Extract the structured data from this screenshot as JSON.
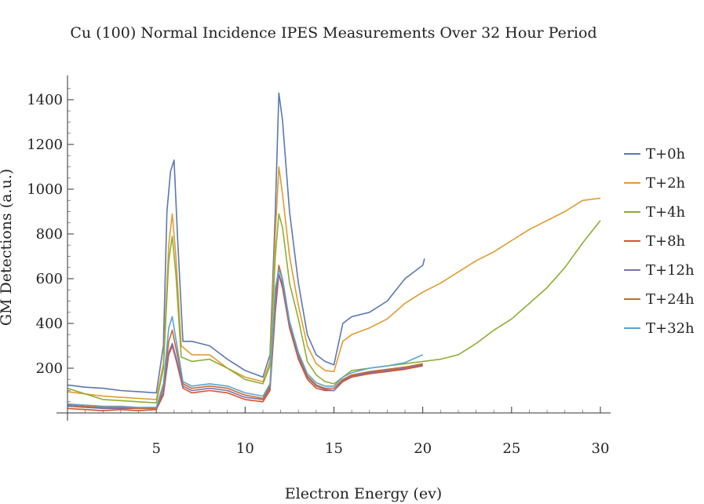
{
  "chart_data": {
    "type": "line",
    "title": "Cu (100) Normal Incidence IPES Measurements Over 32 Hour Period",
    "xlabel": "Electron Energy (ev)",
    "ylabel": "GM Detections (a.u.)",
    "xlim": [
      0,
      31
    ],
    "ylim": [
      -50,
      1500
    ],
    "xticks": [
      5,
      10,
      15,
      20,
      25,
      30
    ],
    "yticks": [
      200,
      400,
      600,
      800,
      1000,
      1200,
      1400
    ],
    "grid": false,
    "legend_position": "right",
    "series": [
      {
        "name": "T+0h",
        "color": "#5a78b1",
        "points": [
          [
            0,
            125
          ],
          [
            1,
            115
          ],
          [
            2,
            110
          ],
          [
            3,
            100
          ],
          [
            4,
            95
          ],
          [
            5,
            90
          ],
          [
            5.4,
            300
          ],
          [
            5.6,
            900
          ],
          [
            5.8,
            1080
          ],
          [
            6,
            1130
          ],
          [
            6.2,
            780
          ],
          [
            6.5,
            320
          ],
          [
            7,
            320
          ],
          [
            8,
            300
          ],
          [
            9,
            240
          ],
          [
            10,
            190
          ],
          [
            11,
            160
          ],
          [
            11.4,
            260
          ],
          [
            11.7,
            900
          ],
          [
            11.9,
            1430
          ],
          [
            12.1,
            1310
          ],
          [
            12.5,
            900
          ],
          [
            13,
            580
          ],
          [
            13.5,
            350
          ],
          [
            14,
            260
          ],
          [
            14.5,
            230
          ],
          [
            15,
            215
          ],
          [
            15.5,
            400
          ],
          [
            16,
            430
          ],
          [
            17,
            450
          ],
          [
            18,
            500
          ],
          [
            19,
            600
          ],
          [
            20,
            660
          ],
          [
            20.1,
            690
          ]
        ]
      },
      {
        "name": "T+2h",
        "color": "#e29b2e",
        "points": [
          [
            0,
            95
          ],
          [
            1,
            85
          ],
          [
            2,
            75
          ],
          [
            3,
            70
          ],
          [
            4,
            65
          ],
          [
            5,
            60
          ],
          [
            5.4,
            220
          ],
          [
            5.7,
            750
          ],
          [
            5.9,
            890
          ],
          [
            6.1,
            700
          ],
          [
            6.4,
            300
          ],
          [
            7,
            260
          ],
          [
            8,
            260
          ],
          [
            9,
            200
          ],
          [
            10,
            160
          ],
          [
            11,
            140
          ],
          [
            11.4,
            230
          ],
          [
            11.7,
            800
          ],
          [
            11.9,
            1100
          ],
          [
            12.1,
            980
          ],
          [
            12.5,
            700
          ],
          [
            13,
            480
          ],
          [
            13.5,
            300
          ],
          [
            14,
            220
          ],
          [
            14.5,
            190
          ],
          [
            15,
            185
          ],
          [
            15.5,
            320
          ],
          [
            16,
            350
          ],
          [
            17,
            380
          ],
          [
            18,
            420
          ],
          [
            19,
            490
          ],
          [
            20,
            540
          ],
          [
            21,
            580
          ],
          [
            22,
            630
          ],
          [
            23,
            680
          ],
          [
            24,
            720
          ],
          [
            25,
            770
          ],
          [
            26,
            820
          ],
          [
            27,
            860
          ],
          [
            28,
            900
          ],
          [
            29,
            950
          ],
          [
            30,
            960
          ]
        ]
      },
      {
        "name": "T+4h",
        "color": "#8fad34",
        "points": [
          [
            0,
            110
          ],
          [
            1,
            85
          ],
          [
            2,
            60
          ],
          [
            3,
            55
          ],
          [
            4,
            50
          ],
          [
            5,
            45
          ],
          [
            5.4,
            200
          ],
          [
            5.7,
            680
          ],
          [
            5.9,
            790
          ],
          [
            6.1,
            620
          ],
          [
            6.4,
            250
          ],
          [
            7,
            230
          ],
          [
            8,
            240
          ],
          [
            9,
            200
          ],
          [
            10,
            150
          ],
          [
            11,
            130
          ],
          [
            11.4,
            210
          ],
          [
            11.7,
            700
          ],
          [
            11.9,
            890
          ],
          [
            12.1,
            830
          ],
          [
            12.5,
            580
          ],
          [
            13,
            420
          ],
          [
            13.5,
            230
          ],
          [
            14,
            170
          ],
          [
            14.5,
            140
          ],
          [
            15,
            130
          ],
          [
            15.5,
            160
          ],
          [
            16,
            190
          ],
          [
            17,
            200
          ],
          [
            18,
            210
          ],
          [
            19,
            220
          ],
          [
            20,
            230
          ],
          [
            21,
            240
          ],
          [
            22,
            260
          ],
          [
            23,
            310
          ],
          [
            24,
            370
          ],
          [
            25,
            420
          ],
          [
            26,
            490
          ],
          [
            27,
            560
          ],
          [
            28,
            650
          ],
          [
            29,
            760
          ],
          [
            30,
            860
          ]
        ]
      },
      {
        "name": "T+8h",
        "color": "#d9542e",
        "points": [
          [
            0,
            20
          ],
          [
            1,
            15
          ],
          [
            2,
            10
          ],
          [
            3,
            15
          ],
          [
            4,
            10
          ],
          [
            5,
            15
          ],
          [
            5.4,
            80
          ],
          [
            5.7,
            260
          ],
          [
            5.9,
            300
          ],
          [
            6.1,
            240
          ],
          [
            6.5,
            110
          ],
          [
            7,
            90
          ],
          [
            8,
            100
          ],
          [
            9,
            90
          ],
          [
            10,
            60
          ],
          [
            11,
            50
          ],
          [
            11.4,
            100
          ],
          [
            11.7,
            450
          ],
          [
            11.9,
            620
          ],
          [
            12.1,
            560
          ],
          [
            12.5,
            380
          ],
          [
            13,
            240
          ],
          [
            13.5,
            150
          ],
          [
            14,
            110
          ],
          [
            14.5,
            100
          ],
          [
            15,
            100
          ],
          [
            15.5,
            140
          ],
          [
            16,
            160
          ],
          [
            17,
            175
          ],
          [
            18,
            185
          ],
          [
            19,
            195
          ],
          [
            20,
            210
          ]
        ]
      },
      {
        "name": "T+12h",
        "color": "#7c6fb0",
        "points": [
          [
            0,
            30
          ],
          [
            1,
            25
          ],
          [
            2,
            20
          ],
          [
            3,
            20
          ],
          [
            4,
            20
          ],
          [
            5,
            20
          ],
          [
            5.4,
            90
          ],
          [
            5.7,
            270
          ],
          [
            5.9,
            310
          ],
          [
            6.1,
            250
          ],
          [
            6.5,
            120
          ],
          [
            7,
            100
          ],
          [
            8,
            110
          ],
          [
            9,
            100
          ],
          [
            10,
            70
          ],
          [
            11,
            60
          ],
          [
            11.4,
            110
          ],
          [
            11.7,
            480
          ],
          [
            11.9,
            620
          ],
          [
            12.1,
            580
          ],
          [
            12.5,
            390
          ],
          [
            13,
            250
          ],
          [
            13.5,
            160
          ],
          [
            14,
            120
          ],
          [
            14.5,
            105
          ],
          [
            15,
            100
          ],
          [
            15.5,
            145
          ],
          [
            16,
            165
          ],
          [
            17,
            180
          ],
          [
            18,
            190
          ],
          [
            19,
            200
          ],
          [
            20,
            215
          ]
        ]
      },
      {
        "name": "T+24h",
        "color": "#c86b2a",
        "points": [
          [
            0,
            35
          ],
          [
            1,
            30
          ],
          [
            2,
            25
          ],
          [
            3,
            25
          ],
          [
            4,
            20
          ],
          [
            5,
            20
          ],
          [
            5.4,
            110
          ],
          [
            5.7,
            320
          ],
          [
            5.9,
            370
          ],
          [
            6.1,
            290
          ],
          [
            6.5,
            130
          ],
          [
            7,
            110
          ],
          [
            8,
            120
          ],
          [
            9,
            110
          ],
          [
            10,
            80
          ],
          [
            11,
            65
          ],
          [
            11.4,
            120
          ],
          [
            11.7,
            520
          ],
          [
            11.9,
            660
          ],
          [
            12.1,
            600
          ],
          [
            12.5,
            400
          ],
          [
            13,
            260
          ],
          [
            13.5,
            165
          ],
          [
            14,
            125
          ],
          [
            14.5,
            110
          ],
          [
            15,
            110
          ],
          [
            15.5,
            150
          ],
          [
            16,
            170
          ],
          [
            17,
            185
          ],
          [
            18,
            195
          ],
          [
            19,
            205
          ],
          [
            20,
            220
          ]
        ]
      },
      {
        "name": "T+32h",
        "color": "#5ba3d0",
        "points": [
          [
            0,
            40
          ],
          [
            1,
            35
          ],
          [
            2,
            30
          ],
          [
            3,
            30
          ],
          [
            4,
            25
          ],
          [
            5,
            25
          ],
          [
            5.4,
            130
          ],
          [
            5.7,
            380
          ],
          [
            5.9,
            430
          ],
          [
            6.1,
            330
          ],
          [
            6.5,
            140
          ],
          [
            7,
            120
          ],
          [
            8,
            130
          ],
          [
            9,
            120
          ],
          [
            10,
            90
          ],
          [
            11,
            75
          ],
          [
            11.4,
            130
          ],
          [
            11.7,
            560
          ],
          [
            11.9,
            640
          ],
          [
            12.1,
            600
          ],
          [
            12.5,
            410
          ],
          [
            13,
            270
          ],
          [
            13.5,
            175
          ],
          [
            14,
            135
          ],
          [
            14.5,
            120
          ],
          [
            15,
            120
          ],
          [
            15.5,
            160
          ],
          [
            16,
            180
          ],
          [
            17,
            200
          ],
          [
            18,
            210
          ],
          [
            19,
            225
          ],
          [
            20,
            260
          ]
        ]
      }
    ]
  }
}
